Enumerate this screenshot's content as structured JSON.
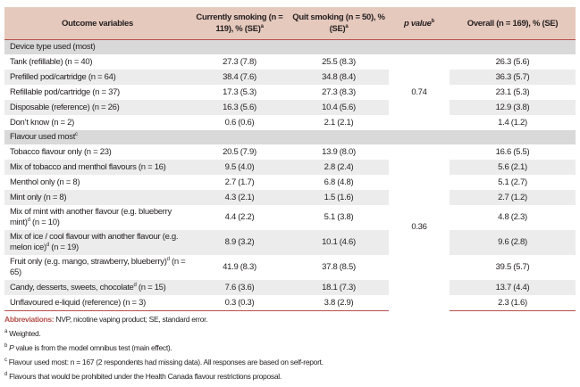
{
  "header": {
    "col1": "Outcome variables",
    "col2": "Currently smoking (n = 119), % (SE)",
    "col2_sup": "a",
    "col3": "Quit smoking (n = 50), % (SE)",
    "col3_sup": "a",
    "col4": "p value",
    "col4_sup": "b",
    "col5": "Overall (n = 169), % (SE)"
  },
  "sections": [
    {
      "title": "Device type used (most)",
      "title_sup": "",
      "p_value": "0.74",
      "rows": [
        {
          "label": "Tank (refillable) (n = 40)",
          "current": "27.3 (7.8)",
          "quit": "25.5 (8.3)",
          "overall": "26.3 (5.6)"
        },
        {
          "label": "Prefilled pod/cartridge (n = 64)",
          "current": "38.4 (7.6)",
          "quit": "34.8 (8.4)",
          "overall": "36.3 (5.7)"
        },
        {
          "label": "Refillable pod/cartridge (n = 37)",
          "current": "17.3 (5.3)",
          "quit": "27.3 (8.3)",
          "overall": "23.1 (5.3)"
        },
        {
          "label": "Disposable (reference) (n = 26)",
          "current": "16.3 (5.6)",
          "quit": "10.4 (5.6)",
          "overall": "12.9 (3.8)"
        },
        {
          "label": "Don’t know (n = 2)",
          "current": "0.6 (0.6)",
          "quit": "2.1 (2.1)",
          "overall": "1.4 (1.2)"
        }
      ]
    },
    {
      "title": "Flavour used most",
      "title_sup": "c",
      "p_value": "0.36",
      "rows": [
        {
          "label": "Tobacco flavour only (n = 23)",
          "current": "20.5 (7.9)",
          "quit": "13.9 (8.0)",
          "overall": "16.6 (5.5)"
        },
        {
          "label": "Mix of tobacco and menthol flavours (n = 16)",
          "current": "9.5 (4.0)",
          "quit": "2.8 (2.4)",
          "overall": "5.6 (2.1)"
        },
        {
          "label": "Menthol only (n = 8)",
          "current": "2.7 (1.7)",
          "quit": "6.8 (4.8)",
          "overall": "5.1 (2.7)"
        },
        {
          "label": "Mint only (n = 8)",
          "current": "4.3 (2.1)",
          "quit": "1.5 (1.6)",
          "overall": "2.7 (1.2)"
        },
        {
          "label_a": "Mix of mint with another flavour (e.g. blueberry mint)",
          "sup": "d",
          "label_b": " (n = 10)",
          "current": "4.4 (2.2)",
          "quit": "5.1 (3.8)",
          "overall": "4.8 (2.3)"
        },
        {
          "label_a": "Mix of ice / cool flavour with another flavour (e.g. melon ice)",
          "sup": "d",
          "label_b": " (n = 19)",
          "current": "8.9 (3.2)",
          "quit": "10.1 (4.6)",
          "overall": "9.6 (2.8)"
        },
        {
          "label_a": "Fruit only (e.g. mango, strawberry, blueberry)",
          "sup": "d",
          "label_b": " (n = 65)",
          "current": "41.9 (8.3)",
          "quit": "37.8 (8.5)",
          "overall": "39.5 (5.7)"
        },
        {
          "label_a": "Candy, desserts, sweets, chocolate",
          "sup": "d",
          "label_b": " (n = 15)",
          "current": "7.6 (3.6)",
          "quit": "18.1 (7.3)",
          "overall": "13.7 (4.4)"
        },
        {
          "label": "Unflavoured e-liquid (reference) (n = 3)",
          "current": "0.3 (0.3)",
          "quit": "3.8 (2.9)",
          "overall": "2.3 (1.6)"
        }
      ]
    }
  ],
  "footnotes": {
    "abbr_label": "Abbreviations:",
    "abbr_text": " NVP, nicotine vaping product; SE, standard error.",
    "a_mark": "a",
    "a_text": " Weighted.",
    "b_mark": "b",
    "b_italic": " P",
    "b_text": " value is from the model omnibus test (main effect).",
    "c_mark": "c",
    "c_text": " Flavour used most: n = 167 (2 respondents had missing data). All responses are based on self-report.",
    "d_mark": "d",
    "d_text": " Flavours that would be prohibited under the Health Canada flavour restrictions proposal."
  }
}
